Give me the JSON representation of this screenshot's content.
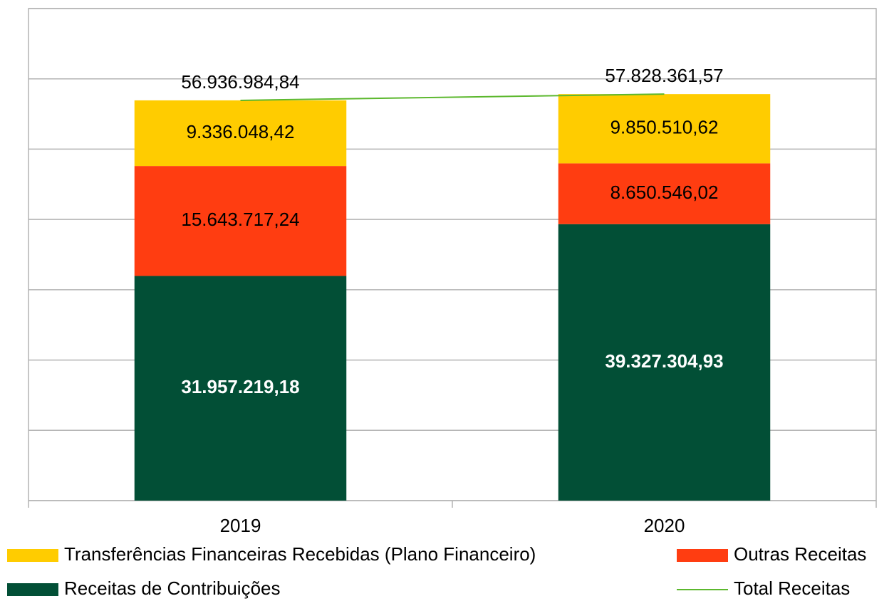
{
  "chart_data": {
    "type": "stacked-bar-line",
    "categories": [
      "2019",
      "2020"
    ],
    "ylim": [
      0,
      70000000
    ],
    "yticks": [
      0,
      10000000,
      20000000,
      30000000,
      40000000,
      50000000,
      60000000,
      70000000
    ],
    "grid": true,
    "series": [
      {
        "name": "Receitas de Contribuições",
        "color": "#024f36",
        "values": [
          31957219.18,
          39327304.93
        ],
        "value_labels": [
          "31.957.219,18",
          "39.327.304,93"
        ]
      },
      {
        "name": "Outras Receitas",
        "color": "#ff3d11",
        "values": [
          15643717.24,
          8650546.02
        ],
        "value_labels": [
          "15.643.717,24",
          "8.650.546,02"
        ]
      },
      {
        "name": "Transferências Financeiras Recebidas (Plano Financeiro)",
        "color": "#ffcc00",
        "values": [
          9336048.42,
          9850510.62
        ],
        "value_labels": [
          "9.336.048,42",
          "9.850.510,62"
        ]
      },
      {
        "name": "Total Receitas",
        "type": "line",
        "color": "#5cb82e",
        "values": [
          56936984.84,
          57828361.57
        ],
        "value_labels": [
          "56.936.984,84",
          "57.828.361,57"
        ]
      }
    ]
  }
}
